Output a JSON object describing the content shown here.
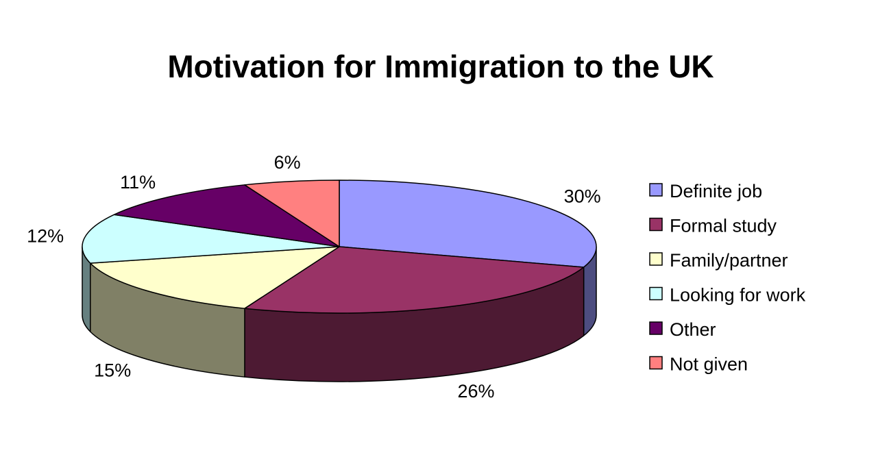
{
  "chart_data": {
    "type": "pie",
    "style": "3d",
    "title": "Motivation for Immigration to the UK",
    "legend_position": "right",
    "slices": [
      {
        "label": "Definite job",
        "value": 30,
        "value_label": "30%",
        "color": "#9999FF",
        "side_color": "#4D4D80"
      },
      {
        "label": "Formal study",
        "value": 26,
        "value_label": "26%",
        "color": "#993366",
        "side_color": "#4D1A33"
      },
      {
        "label": "Family/partner",
        "value": 15,
        "value_label": "15%",
        "color": "#FFFFCC",
        "side_color": "#808066"
      },
      {
        "label": "Looking for work",
        "value": 12,
        "value_label": "12%",
        "color": "#CCFFFF",
        "side_color": "#668080"
      },
      {
        "label": "Other",
        "value": 11,
        "value_label": "11%",
        "color": "#660066",
        "side_color": "#330033"
      },
      {
        "label": "Not given",
        "value": 6,
        "value_label": "6%",
        "color": "#FF8080",
        "side_color": "#804040"
      }
    ]
  }
}
